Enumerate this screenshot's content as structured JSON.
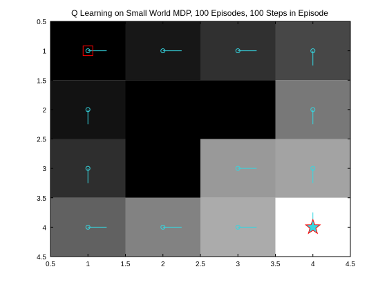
{
  "chart_data": {
    "type": "heatmap",
    "title": "Q Learning on Small World MDP, 100 Episodes, 100 Steps in Episode",
    "xlabel": "",
    "ylabel": "",
    "xlim": [
      0.5,
      4.5
    ],
    "ylim": [
      0.5,
      4.5
    ],
    "y_reversed": true,
    "x_ticks": [
      0.5,
      1,
      1.5,
      2,
      2.5,
      3,
      3.5,
      4,
      4.5
    ],
    "y_ticks": [
      0.5,
      1,
      1.5,
      2,
      2.5,
      3,
      3.5,
      4,
      4.5
    ],
    "x_tick_labels": [
      "0.5",
      "1",
      "1.5",
      "2",
      "2.5",
      "3",
      "3.5",
      "4",
      "4.5"
    ],
    "y_tick_labels": [
      "0.5",
      "1",
      "1.5",
      "2",
      "2.5",
      "3",
      "3.5",
      "4",
      "4.5"
    ],
    "colormap": "gray",
    "grid": false,
    "cell_values": [
      [
        0.0,
        0.09,
        0.19,
        0.28
      ],
      [
        0.07,
        0.0,
        0.0,
        0.47
      ],
      [
        0.18,
        0.0,
        0.6,
        0.64
      ],
      [
        0.38,
        0.51,
        0.67,
        1.0
      ]
    ],
    "policy_arrows": [
      {
        "row": 1,
        "col": 1,
        "direction": "right"
      },
      {
        "row": 1,
        "col": 2,
        "direction": "right"
      },
      {
        "row": 1,
        "col": 3,
        "direction": "right"
      },
      {
        "row": 1,
        "col": 4,
        "direction": "down"
      },
      {
        "row": 2,
        "col": 1,
        "direction": "down"
      },
      {
        "row": 2,
        "col": 4,
        "direction": "down"
      },
      {
        "row": 3,
        "col": 1,
        "direction": "down"
      },
      {
        "row": 3,
        "col": 3,
        "direction": "right"
      },
      {
        "row": 3,
        "col": 4,
        "direction": "down"
      },
      {
        "row": 4,
        "col": 1,
        "direction": "right"
      },
      {
        "row": 4,
        "col": 2,
        "direction": "right"
      },
      {
        "row": 4,
        "col": 3,
        "direction": "right"
      },
      {
        "row": 4,
        "col": 4,
        "direction": "up"
      }
    ],
    "start_marker": {
      "row": 1,
      "col": 1,
      "shape": "square"
    },
    "goal_marker": {
      "row": 4,
      "col": 4,
      "shape": "star"
    },
    "colors": {
      "arrow": "#36d6e0",
      "start": "#ff0000",
      "goal_edge": "#ff0000",
      "goal_fill": "#36d6e0"
    }
  }
}
